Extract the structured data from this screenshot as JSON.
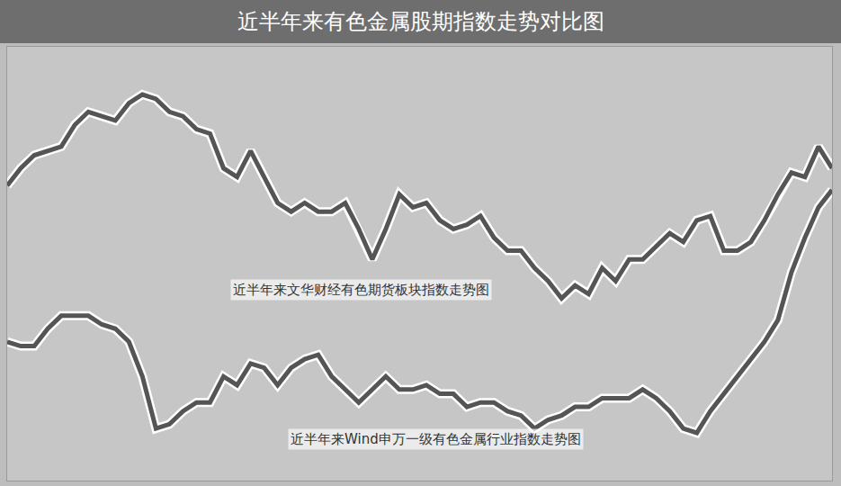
{
  "chart_data": {
    "type": "line",
    "title": "近半年来有色金属股期指数走势对比图",
    "x": [
      0,
      1,
      2,
      3,
      4,
      5,
      6,
      7,
      8,
      9,
      10,
      11,
      12,
      13,
      14,
      15,
      16,
      17,
      18,
      19,
      20,
      21,
      22,
      23,
      24,
      25,
      26,
      27,
      28,
      29,
      30,
      31,
      32,
      33,
      34,
      35,
      36,
      37,
      38,
      39,
      40,
      41,
      42,
      43,
      44,
      45,
      46,
      47,
      48,
      49,
      50,
      51,
      52,
      53,
      54,
      55,
      56,
      57,
      58,
      59,
      60,
      61
    ],
    "xlim": [
      0,
      61
    ],
    "ylim": [
      0,
      100
    ],
    "tick_labels": false,
    "grid": false,
    "series": [
      {
        "name": "近半年来文华财经有色期货板块指数走势图",
        "color": "#555555",
        "values": [
          68,
          72,
          75,
          76,
          77,
          82,
          85,
          84,
          83,
          87,
          89,
          88,
          85,
          84,
          81,
          80,
          72,
          70,
          76,
          70,
          64,
          62,
          64,
          62,
          62,
          64,
          58,
          51,
          58,
          66,
          63,
          64,
          60,
          58,
          59,
          61,
          56,
          53,
          53,
          49,
          46,
          42,
          45,
          43,
          49,
          46,
          51,
          51,
          54,
          57,
          55,
          60,
          61,
          53,
          53,
          55,
          60,
          66,
          71,
          70,
          77,
          72
        ]
      },
      {
        "name": "近半年来Wind申万一级有色金属行业指数走势图",
        "color": "#555555",
        "values": [
          32,
          31,
          31,
          35,
          38,
          38,
          38,
          36,
          35,
          32,
          24,
          12,
          13,
          16,
          18,
          18,
          24,
          22,
          27,
          26,
          22,
          26,
          28,
          29,
          24,
          21,
          18,
          21,
          24,
          21,
          21,
          22,
          20,
          20,
          17,
          18,
          18,
          16,
          15,
          12,
          14,
          15,
          17,
          17,
          19,
          19,
          19,
          21,
          19,
          16,
          12,
          11,
          16,
          20,
          24,
          28,
          32,
          37,
          48,
          56,
          63,
          67
        ]
      }
    ]
  }
}
